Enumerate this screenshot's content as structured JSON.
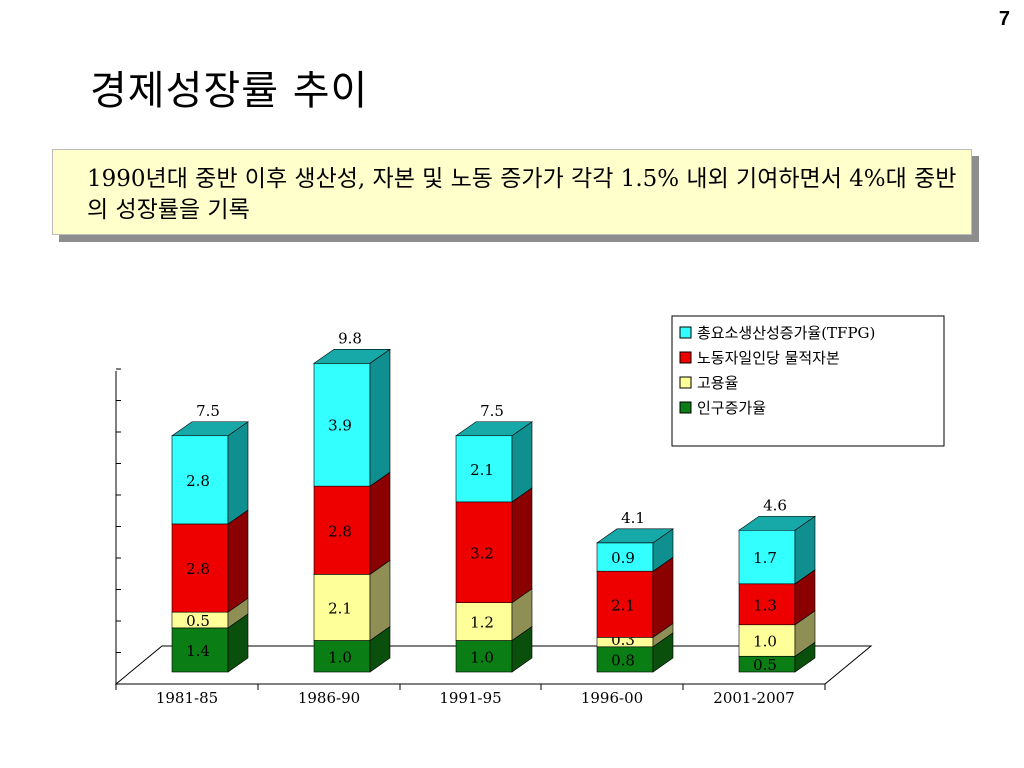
{
  "page_number": "7",
  "title": "경제성장률 추이",
  "callout": {
    "text": "1990년대 중반 이후 생산성, 자본 및 노동 증가가 각각 1.5% 내외 기여하면서 4%대 중반의 성장률을 기록"
  },
  "chart_data": {
    "type": "bar",
    "stacked": true,
    "three_d": true,
    "categories": [
      "1981-85",
      "1986-90",
      "1991-95",
      "1996-00",
      "2001-2007"
    ],
    "series": [
      {
        "name": "인구증가율",
        "values": [
          1.4,
          1.0,
          1.0,
          0.8,
          0.5
        ],
        "labels": [
          "1.4",
          "1.0",
          "1.0",
          "0.8",
          "0.5"
        ],
        "color": "#0a7d14",
        "side": "#0a4f0c",
        "top": "#0c9a1a"
      },
      {
        "name": "고용율",
        "values": [
          0.5,
          2.1,
          1.2,
          0.3,
          1.0
        ],
        "labels": [
          "0.5",
          "2.1",
          "1.2",
          "0.3",
          "1.0"
        ],
        "color": "#ffff99",
        "side": "#8f8f55",
        "top": "#c8c878"
      },
      {
        "name": "노동자일인당 물적자본",
        "values": [
          2.8,
          2.8,
          3.2,
          2.1,
          1.3
        ],
        "labels": [
          "2.8",
          "2.8",
          "3.2",
          "2.1",
          "1.3"
        ],
        "color": "#ee0000",
        "side": "#8b0000",
        "top": "#b00000"
      },
      {
        "name": "총요소생산성증가율(TFPG)",
        "values": [
          2.8,
          3.9,
          2.1,
          0.9,
          1.7
        ],
        "labels": [
          "2.8",
          "3.9",
          "2.1",
          "0.9",
          "1.7"
        ],
        "color": "#33ffff",
        "side": "#0f8f8f",
        "top": "#17a8a8"
      }
    ],
    "totals": [
      "7.5",
      "9.8",
      "7.5",
      "4.1",
      "4.6"
    ],
    "legend_order": [
      "총요소생산성증가율(TFPG)",
      "노동자일인당 물적자본",
      "고용율",
      "인구증가율"
    ],
    "legend_position": "top-right",
    "ylim": [
      0,
      10
    ]
  }
}
